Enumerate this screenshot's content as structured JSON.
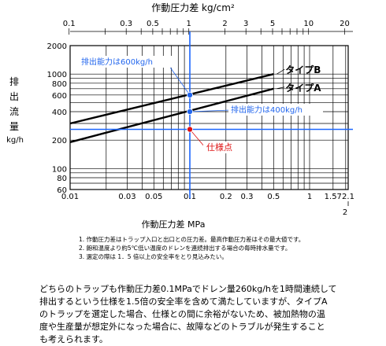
{
  "chart_data": {
    "type": "line",
    "title": "作動圧力差 kg/cm²",
    "xlabel": "作動圧力差 MPa",
    "ylabel_chars": [
      "排",
      "出",
      "流",
      "量"
    ],
    "yunit": "kg/h",
    "xscale": "log",
    "yscale": "log",
    "xlim": [
      0.01,
      2.1
    ],
    "ylim": [
      60,
      2000
    ],
    "top_axis_ticks": [
      "0.1",
      "0.3",
      "0.5",
      "1",
      "2",
      "3",
      "5",
      "10",
      "20"
    ],
    "bottom_axis_ticks": [
      "0.01",
      "0.03",
      "0.05",
      "0.1",
      "0.2",
      "0.3",
      "0.5",
      "1",
      "1.57",
      "2.1"
    ],
    "bottom_axis_extra": "2",
    "y_ticks": [
      "2000",
      "1000",
      "800",
      "600",
      "400",
      "200",
      "100",
      "80",
      "60"
    ],
    "series": [
      {
        "name": "タイプB",
        "x": [
          0.01,
          0.5
        ],
        "y": [
          300,
          1000
        ]
      },
      {
        "name": "タイプA",
        "x": [
          0.01,
          0.5
        ],
        "y": [
          190,
          700
        ]
      }
    ],
    "reference_lines": {
      "x": 0.1,
      "y": 260,
      "color": "#1a66ff"
    },
    "points": [
      {
        "label": "排出能力は600kg/h",
        "x": 0.1,
        "y": 600,
        "color": "#2266ee"
      },
      {
        "label": "排出能力は400kg/h",
        "x": 0.1,
        "y": 400,
        "color": "#2266ee"
      },
      {
        "label": "仕様点",
        "x": 0.1,
        "y": 260,
        "color": "#dd1111"
      }
    ],
    "grid": true
  },
  "notes": [
    "1. 作動圧力差はトラップ入口と出口との圧力差。最高作動圧力差はその最大値です。",
    "2. 飽和温度より約5℃低い温度のドレンを連続排出する場合の毎時排水量です。",
    "3. 選定の際は 1．5 倍以上の安全率をとり見込みたい。"
  ],
  "paragraph": [
    "どちらのトラップも作動圧力差0.1MPaでドレン量260kg/hを1時間連続して",
    "排出するという仕様を1.5倍の安全率を含めて満たしていますが、タイプA",
    "のトラップを選定した場合、仕様との間に余裕がないため、被加熱物の温",
    "度や生産量が想定外になった場合に、故障などのトラブルが発生すること",
    "も考えられます。"
  ]
}
